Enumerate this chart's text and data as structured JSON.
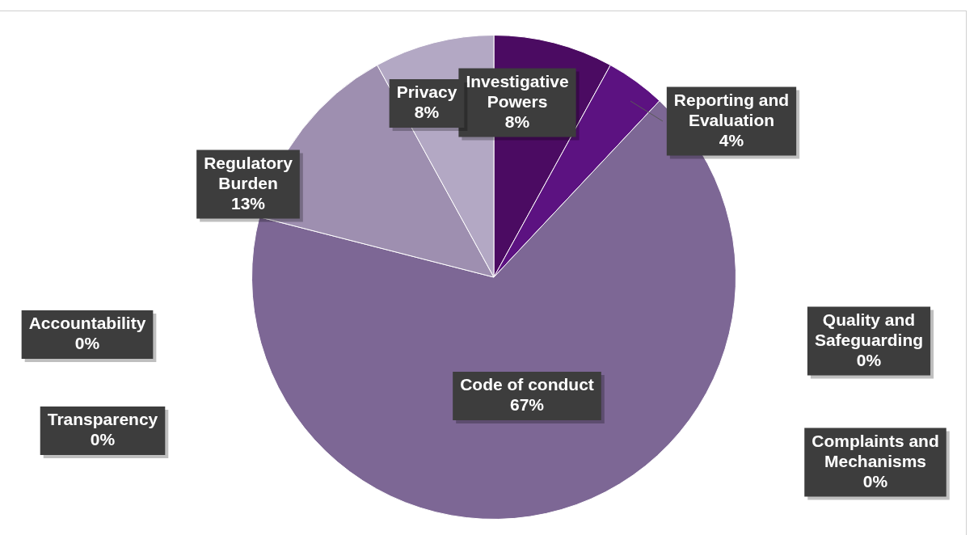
{
  "chart_data": {
    "type": "pie",
    "categories": [
      "Investigative Powers",
      "Reporting and Evaluation",
      "Quality and Safeguarding",
      "Complaints and Mechanisms",
      "Code of conduct",
      "Transparency",
      "Accountability",
      "Regulatory Burden",
      "Privacy"
    ],
    "values": [
      8,
      4,
      0,
      0,
      67,
      0,
      0,
      13,
      8
    ],
    "value_labels": [
      "8%",
      "4%",
      "0%",
      "0%",
      "67%",
      "0%",
      "0%",
      "13%",
      "8%"
    ],
    "colors": [
      "#4b0b62",
      "#5c1281",
      "#6a3f8c",
      "#735a90",
      "#7d6795",
      "#8a7aa2",
      "#9485a9",
      "#9e8fb0",
      "#b3a8c4"
    ],
    "legend": false
  }
}
